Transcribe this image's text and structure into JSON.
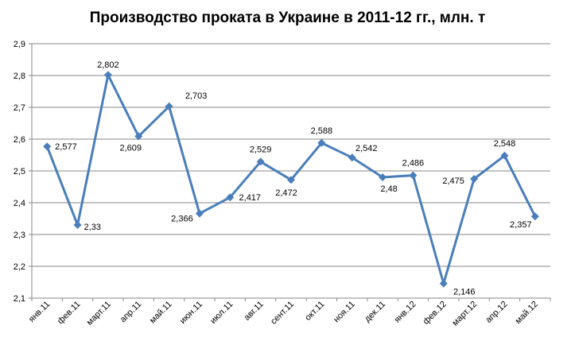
{
  "chart_data": {
    "type": "line",
    "title": "Производство проката в Украине в 2011-12 гг., млн. т",
    "xlabel": "",
    "ylabel": "",
    "categories": [
      "янв.11",
      "фев.11",
      "март.11",
      "апр.11",
      "май.11",
      "июн.11",
      "июл.11",
      "авг.11",
      "сент.11",
      "окт.11",
      "ноя.11",
      "дек.11",
      "янв.12",
      "фев.12",
      "март.12",
      "апр.12",
      "май.12"
    ],
    "series": [
      {
        "values": [
          2.577,
          2.33,
          2.802,
          2.609,
          2.703,
          2.366,
          2.417,
          2.529,
          2.472,
          2.588,
          2.542,
          2.48,
          2.486,
          2.146,
          2.475,
          2.548,
          2.357
        ],
        "labels": [
          "2,577",
          "2,33",
          "2,802",
          "2,609",
          "2,703",
          "2,366",
          "2,417",
          "2,529",
          "2,472",
          "2,588",
          "2,542",
          "2,48",
          "2,486",
          "2,146",
          "2,475",
          "2,548",
          "2,357"
        ],
        "color": "#4a7ebb"
      }
    ],
    "ylim": [
      2.1,
      2.9
    ],
    "yticks": [
      2.1,
      2.2,
      2.3,
      2.4,
      2.5,
      2.6,
      2.7,
      2.8,
      2.9
    ],
    "ytick_labels": [
      "2,1",
      "2,2",
      "2,3",
      "2,4",
      "2,5",
      "2,6",
      "2,7",
      "2,8",
      "2,9"
    ],
    "grid": true,
    "legend": "none",
    "colors": {
      "line": "#4a7ebb",
      "grid": "#878787",
      "axis": "#878787",
      "text": "#000000"
    }
  }
}
